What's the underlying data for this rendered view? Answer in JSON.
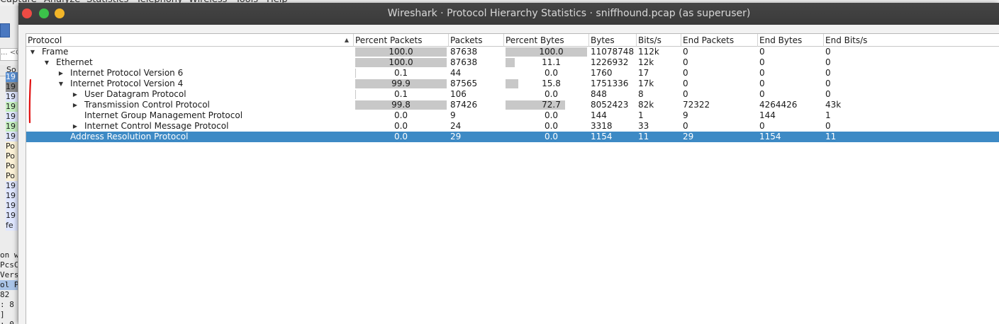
{
  "background_window": {
    "menu": [
      "Capture",
      "Analyze",
      "Statistics",
      "Telephony",
      "Wireless",
      "Tools",
      "Help"
    ],
    "filter_fragment": "... <C",
    "column_fragment": "So",
    "rows": [
      "19",
      "19",
      "19",
      "19",
      "19",
      "19",
      "19",
      "Po",
      "Po",
      "Po",
      "Po",
      "19",
      "19",
      "19",
      "19",
      "fe"
    ],
    "row_colors": [
      "#5a8fd0",
      "#8a8a8a",
      "#dfe6ff",
      "#c6f0c0",
      "#dfe6ff",
      "#c6f0c0",
      "#dfe6ff",
      "#fbf1d6",
      "#fbf1d6",
      "#fbf1d6",
      "#fbf1d6",
      "#dfe6ff",
      "#dfe6ff",
      "#dfe6ff",
      "#dfe6ff",
      "#dfe6ff"
    ],
    "detail_lines": [
      "on w",
      "PcsC",
      "Vers",
      "ol P",
      "82",
      ": 8",
      "]",
      ": 0"
    ]
  },
  "dialog": {
    "title": "Wireshark · Protocol Hierarchy Statistics · sniffhound.pcap (as superuser)",
    "columns": [
      "Protocol",
      "Percent Packets",
      "Packets",
      "Percent Bytes",
      "Bytes",
      "Bits/s",
      "End Packets",
      "End Bytes",
      "End Bits/s"
    ],
    "rows": [
      {
        "protocol": "Frame",
        "depth": 0,
        "arrow": "expanded",
        "pct_packets": "100.0",
        "pct_packets_value": 100.0,
        "packets": "87638",
        "pct_bytes": "100.0",
        "pct_bytes_value": 100.0,
        "bytes": "11078748",
        "bits": "112k",
        "end_packets": "0",
        "end_bytes": "0",
        "end_bits": "0"
      },
      {
        "protocol": "Ethernet",
        "depth": 1,
        "arrow": "expanded",
        "pct_packets": "100.0",
        "pct_packets_value": 100.0,
        "packets": "87638",
        "pct_bytes": "11.1",
        "pct_bytes_value": 11.1,
        "bytes": "1226932",
        "bits": "12k",
        "end_packets": "0",
        "end_bytes": "0",
        "end_bits": "0"
      },
      {
        "protocol": "Internet Protocol Version 6",
        "depth": 2,
        "arrow": "collapsed",
        "pct_packets": "0.1",
        "pct_packets_value": 0.1,
        "packets": "44",
        "pct_bytes": "0.0",
        "pct_bytes_value": 0.0,
        "bytes": "1760",
        "bits": "17",
        "end_packets": "0",
        "end_bytes": "0",
        "end_bits": "0"
      },
      {
        "protocol": "Internet Protocol Version 4",
        "depth": 2,
        "arrow": "expanded",
        "pct_packets": "99.9",
        "pct_packets_value": 99.9,
        "packets": "87565",
        "pct_bytes": "15.8",
        "pct_bytes_value": 15.8,
        "bytes": "1751336",
        "bits": "17k",
        "end_packets": "0",
        "end_bytes": "0",
        "end_bits": "0"
      },
      {
        "protocol": "User Datagram Protocol",
        "depth": 3,
        "arrow": "collapsed",
        "pct_packets": "0.1",
        "pct_packets_value": 0.1,
        "packets": "106",
        "pct_bytes": "0.0",
        "pct_bytes_value": 0.0,
        "bytes": "848",
        "bits": "8",
        "end_packets": "0",
        "end_bytes": "0",
        "end_bits": "0"
      },
      {
        "protocol": "Transmission Control Protocol",
        "depth": 3,
        "arrow": "collapsed",
        "pct_packets": "99.8",
        "pct_packets_value": 99.8,
        "packets": "87426",
        "pct_bytes": "72.7",
        "pct_bytes_value": 72.7,
        "bytes": "8052423",
        "bits": "82k",
        "end_packets": "72322",
        "end_bytes": "4264426",
        "end_bits": "43k"
      },
      {
        "protocol": "Internet Group Management Protocol",
        "depth": 3,
        "arrow": "none",
        "pct_packets": "0.0",
        "pct_packets_value": 0.0,
        "packets": "9",
        "pct_bytes": "0.0",
        "pct_bytes_value": 0.0,
        "bytes": "144",
        "bits": "1",
        "end_packets": "9",
        "end_bytes": "144",
        "end_bits": "1"
      },
      {
        "protocol": "Internet Control Message Protocol",
        "depth": 3,
        "arrow": "collapsed",
        "pct_packets": "0.0",
        "pct_packets_value": 0.0,
        "packets": "24",
        "pct_bytes": "0.0",
        "pct_bytes_value": 0.0,
        "bytes": "3318",
        "bits": "33",
        "end_packets": "0",
        "end_bytes": "0",
        "end_bits": "0"
      },
      {
        "protocol": "Address Resolution Protocol",
        "depth": 2,
        "arrow": "none",
        "selected": true,
        "pct_packets": "0.0",
        "pct_packets_value": 0.0,
        "packets": "29",
        "pct_bytes": "0.0",
        "pct_bytes_value": 0.0,
        "bytes": "1154",
        "bits": "11",
        "end_packets": "29",
        "end_bytes": "1154",
        "end_bits": "11"
      }
    ]
  },
  "colors": {
    "titlebar": "#3f3f3f",
    "selection": "#3d8ac5",
    "bar_fill": "#c8c8c8",
    "annotation_mark": "#e01010",
    "close": "#ee4b44",
    "minimize": "#3bc24a",
    "maximize": "#f2b528"
  },
  "icons": {
    "expanded": "triangle-down-icon",
    "collapsed": "triangle-right-icon",
    "sort": "sort-ascending-icon"
  }
}
